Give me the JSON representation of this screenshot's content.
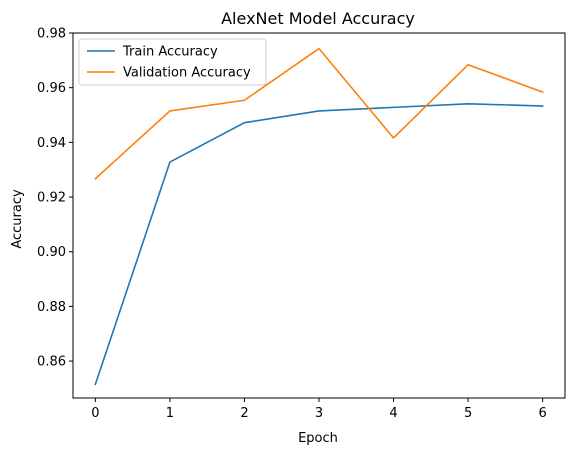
{
  "chart_data": {
    "type": "line",
    "title": "AlexNet Model Accuracy",
    "xlabel": "Epoch",
    "ylabel": "Accuracy",
    "x": [
      0,
      1,
      2,
      3,
      4,
      5,
      6
    ],
    "xlim": [
      -0.3,
      6.3
    ],
    "ylim": [
      0.8465,
      0.98
    ],
    "xticks": [
      0,
      1,
      2,
      3,
      4,
      5,
      6
    ],
    "xtick_labels": [
      "0",
      "1",
      "2",
      "3",
      "4",
      "5",
      "6"
    ],
    "yticks": [
      0.86,
      0.88,
      0.9,
      0.92,
      0.94,
      0.96,
      0.98
    ],
    "ytick_labels": [
      "0.86",
      "0.88",
      "0.90",
      "0.92",
      "0.94",
      "0.96",
      "0.98"
    ],
    "grid": false,
    "legend_position": "top-left",
    "series": [
      {
        "name": "Train Accuracy",
        "color": "#1f77b4",
        "values": [
          0.8515,
          0.9328,
          0.9472,
          0.9515,
          0.9528,
          0.9541,
          0.9533
        ]
      },
      {
        "name": "Validation Accuracy",
        "color": "#ff7f0e",
        "values": [
          0.9267,
          0.9515,
          0.9554,
          0.9743,
          0.9416,
          0.9684,
          0.9584
        ]
      }
    ]
  }
}
